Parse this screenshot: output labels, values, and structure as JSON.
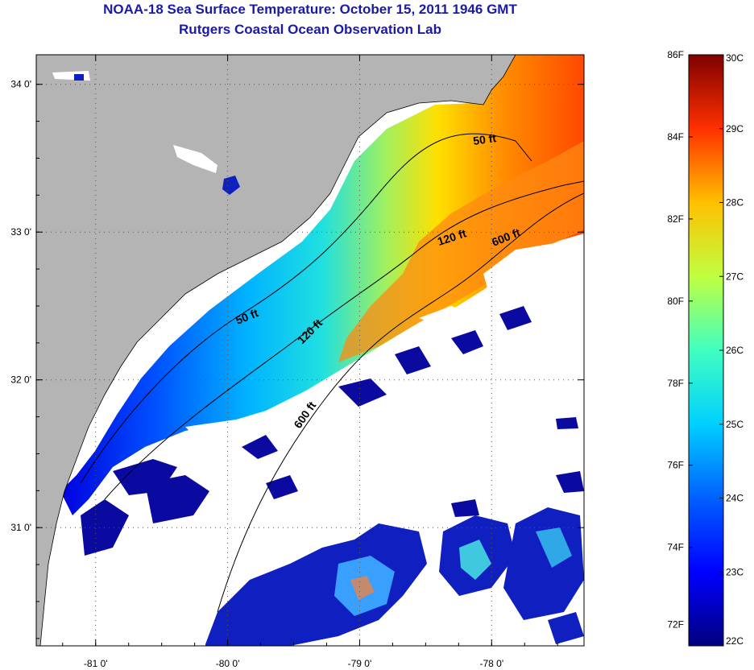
{
  "title": {
    "line1": "NOAA-18 Sea Surface Temperature:  October 15, 2011 1946 GMT",
    "line2": "Rutgers Coastal Ocean Observation Lab"
  },
  "map": {
    "lon_range": [
      -81.45,
      -77.3
    ],
    "lat_range": [
      30.2,
      34.2
    ],
    "lon_ticks": [
      {
        "value": -81,
        "label": "-81 0'"
      },
      {
        "value": -80,
        "label": "-80 0'"
      },
      {
        "value": -79,
        "label": "-79 0'"
      },
      {
        "value": -78,
        "label": "-78 0'"
      }
    ],
    "lat_ticks": [
      {
        "value": 34,
        "label": "34 0'"
      },
      {
        "value": 33,
        "label": "33 0'"
      },
      {
        "value": 32,
        "label": "32 0'"
      },
      {
        "value": 31,
        "label": "31 0'"
      }
    ],
    "land_color": "#b4b4b4",
    "cloud_color": "#ffffff",
    "contour_labels": [
      {
        "id": "50ft-north",
        "text": "50 ft"
      },
      {
        "id": "120ft-north",
        "text": "120 ft"
      },
      {
        "id": "600ft-north",
        "text": "600 ft"
      },
      {
        "id": "50ft-south",
        "text": "50 ft"
      },
      {
        "id": "120ft-south",
        "text": "120 ft"
      },
      {
        "id": "600ft-south",
        "text": "600 ft"
      }
    ]
  },
  "colorbar": {
    "fahrenheit_labels": [
      "86F",
      "84F",
      "82F",
      "80F",
      "78F",
      "76F",
      "74F",
      "72F"
    ],
    "celsius_labels": [
      "30C",
      "29C",
      "28C",
      "27C",
      "26C",
      "25C",
      "24C",
      "23C",
      "22C"
    ],
    "range_c": [
      22,
      30
    ],
    "colors": [
      "#00007f",
      "#0000ff",
      "#007fff",
      "#00ffff",
      "#7fff7f",
      "#ffff00",
      "#ff7f00",
      "#ff0000",
      "#7f0000"
    ]
  }
}
